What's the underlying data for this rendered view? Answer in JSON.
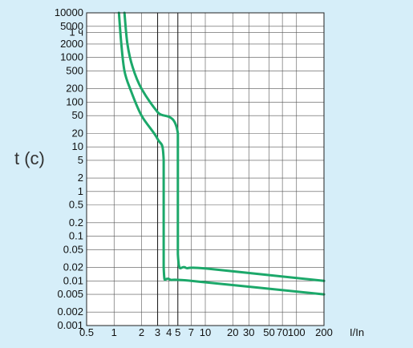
{
  "chart_data": {
    "type": "line",
    "title": "",
    "ylabel": "t (c)",
    "xlabel": "I/In",
    "x_scale": "log",
    "y_scale": "log",
    "xlim": [
      0.5,
      200
    ],
    "ylim": [
      0.001,
      10000
    ],
    "grid": true,
    "legend": "none",
    "y_ticks": [
      {
        "label": "10000",
        "value": 10000
      },
      {
        "label": "5000",
        "value": 5000
      },
      {
        "label": "1 ч",
        "value": 3600
      },
      {
        "label": "2000",
        "value": 2000
      },
      {
        "label": "1000",
        "value": 1000
      },
      {
        "label": "500",
        "value": 500
      },
      {
        "label": "200",
        "value": 200
      },
      {
        "label": "100",
        "value": 100
      },
      {
        "label": "50",
        "value": 50
      },
      {
        "label": "20",
        "value": 20
      },
      {
        "label": "10",
        "value": 10
      },
      {
        "label": "5",
        "value": 5
      },
      {
        "label": "2",
        "value": 2
      },
      {
        "label": "1",
        "value": 1
      },
      {
        "label": "0.5",
        "value": 0.5
      },
      {
        "label": "0.2",
        "value": 0.2
      },
      {
        "label": "0.1",
        "value": 0.1
      },
      {
        "label": "0.05",
        "value": 0.05
      },
      {
        "label": "0.02",
        "value": 0.02
      },
      {
        "label": "0.01",
        "value": 0.01
      },
      {
        "label": "0.005",
        "value": 0.005
      },
      {
        "label": "0.002",
        "value": 0.002
      },
      {
        "label": "0.001",
        "value": 0.001
      }
    ],
    "x_ticks": [
      {
        "label": "0.5",
        "value": 0.5
      },
      {
        "label": "1",
        "value": 1
      },
      {
        "label": "2",
        "value": 2
      },
      {
        "label": "3",
        "value": 3
      },
      {
        "label": "4",
        "value": 4
      },
      {
        "label": "5",
        "value": 5
      },
      {
        "label": "7",
        "value": 7
      },
      {
        "label": "10",
        "value": 10
      },
      {
        "label": "20",
        "value": 20
      },
      {
        "label": "30",
        "value": 30
      },
      {
        "label": "50",
        "value": 50
      },
      {
        "label": "70",
        "value": 70
      },
      {
        "label": "100",
        "value": 100
      },
      {
        "label": "200",
        "value": 200
      }
    ],
    "x_bold_lines": [
      3,
      5
    ],
    "series": [
      {
        "color": "#1ca86a",
        "points": [
          [
            1.13,
            10000
          ],
          [
            1.2,
            2000
          ],
          [
            1.3,
            500
          ],
          [
            1.5,
            200
          ],
          [
            2,
            50
          ],
          [
            3,
            15
          ],
          [
            3.5,
            5
          ],
          [
            3.5,
            0.02
          ],
          [
            4,
            0.011
          ],
          [
            7,
            0.01
          ],
          [
            200,
            0.005
          ]
        ]
      },
      {
        "color": "#1ca86a",
        "points": [
          [
            1.3,
            10000
          ],
          [
            1.4,
            2000
          ],
          [
            1.6,
            600
          ],
          [
            2,
            200
          ],
          [
            3,
            60
          ],
          [
            5,
            20
          ],
          [
            5,
            0.04
          ],
          [
            6,
            0.02
          ],
          [
            10,
            0.019
          ],
          [
            200,
            0.01
          ]
        ]
      }
    ]
  }
}
